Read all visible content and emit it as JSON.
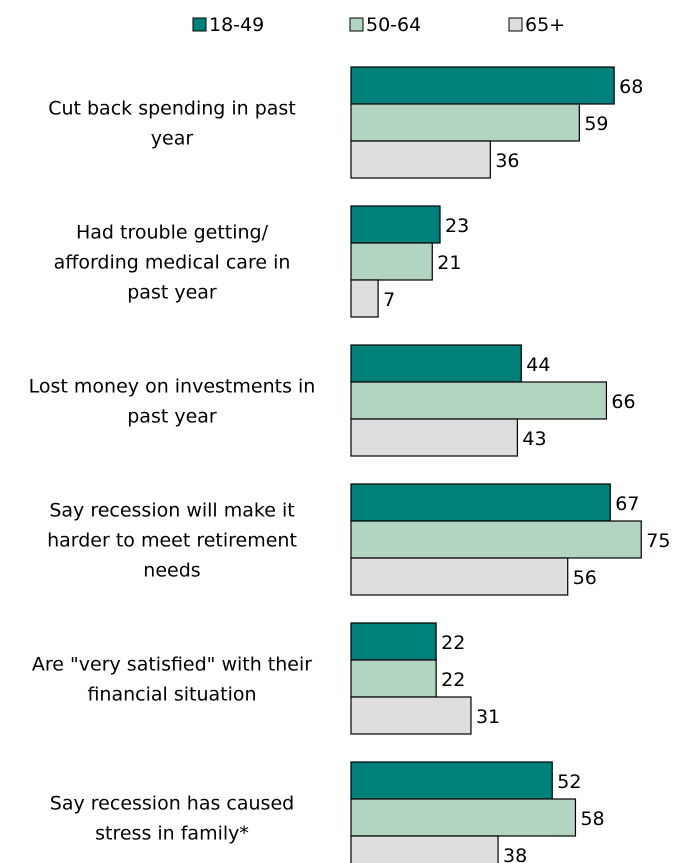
{
  "chart_data": {
    "type": "bar",
    "orientation": "horizontal",
    "title": "",
    "xlabel": "",
    "ylabel": "",
    "xlim": [
      0,
      75
    ],
    "grid": false,
    "legend_position": "top",
    "categories": [
      [
        "Cut back spending in past",
        "year"
      ],
      [
        "Had trouble getting/",
        "affording medical care in",
        "past year"
      ],
      [
        "Lost money on investments in",
        "past year"
      ],
      [
        "Say recession will make it",
        "harder to meet retirement",
        "needs"
      ],
      [
        "Are \"very satisfied\" with their",
        "financial situation"
      ],
      [
        "Say recession has caused",
        "stress in family*"
      ]
    ],
    "series": [
      {
        "name": "18-49",
        "color": "#00807a",
        "values": [
          68,
          23,
          44,
          67,
          22,
          52
        ]
      },
      {
        "name": "50-64",
        "color": "#b4d4c2",
        "values": [
          59,
          21,
          66,
          75,
          22,
          58
        ]
      },
      {
        "name": "65+",
        "color": "#dedede",
        "values": [
          36,
          7,
          43,
          56,
          31,
          38
        ]
      }
    ]
  }
}
